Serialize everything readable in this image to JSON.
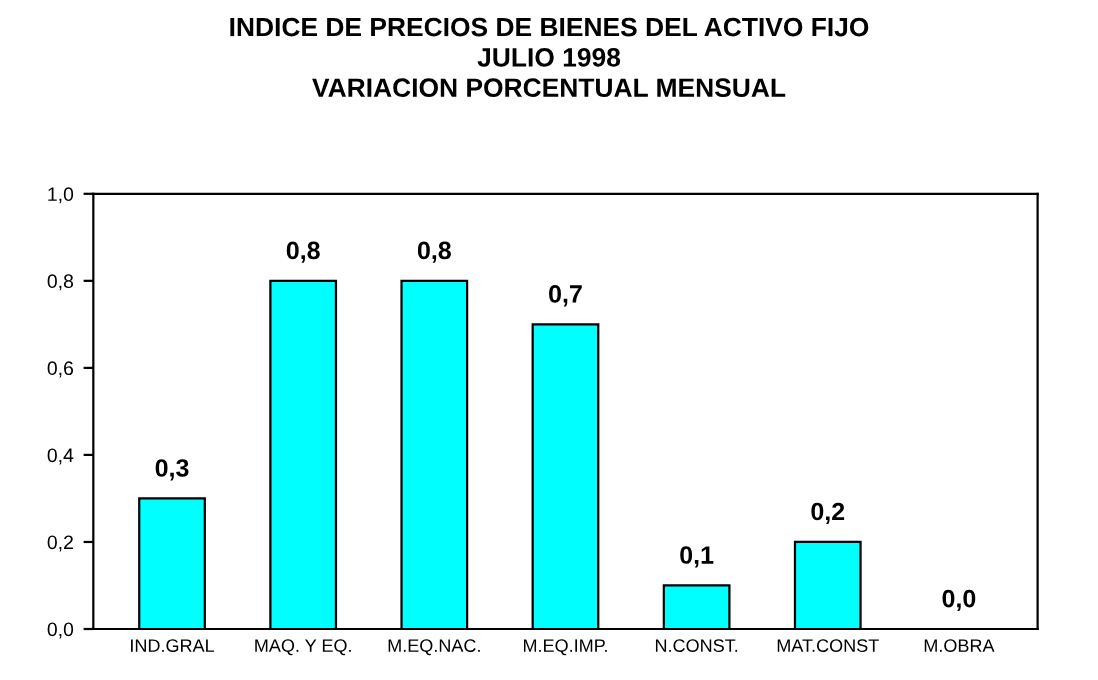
{
  "chart_data": {
    "type": "bar",
    "title": "INDICE DE PRECIOS DE BIENES DEL ACTIVO FIJO\nJULIO 1998\nVARIACION PORCENTUAL MENSUAL",
    "categories": [
      "IND.GRAL",
      "MAQ. Y EQ.",
      "M.EQ.NAC.",
      "M.EQ.IMP.",
      "N.CONST.",
      "MAT.CONST",
      "M.OBRA"
    ],
    "values": [
      0.3,
      0.8,
      0.8,
      0.7,
      0.1,
      0.2,
      0.0
    ],
    "value_labels": [
      "0,3",
      "0,8",
      "0,8",
      "0,7",
      "0,1",
      "0,2",
      "0,0"
    ],
    "color": "#00ffff",
    "ylim": [
      0,
      1
    ],
    "yticks": [
      {
        "value": 0,
        "label": "0,0"
      },
      {
        "value": 0.2,
        "label": "0,2"
      },
      {
        "value": 0.4,
        "label": "0,4"
      },
      {
        "value": 0.6,
        "label": "0,6"
      },
      {
        "value": 0.8,
        "label": "0,8"
      },
      {
        "value": 1,
        "label": "1,0"
      }
    ],
    "grid": false,
    "legend": false
  }
}
